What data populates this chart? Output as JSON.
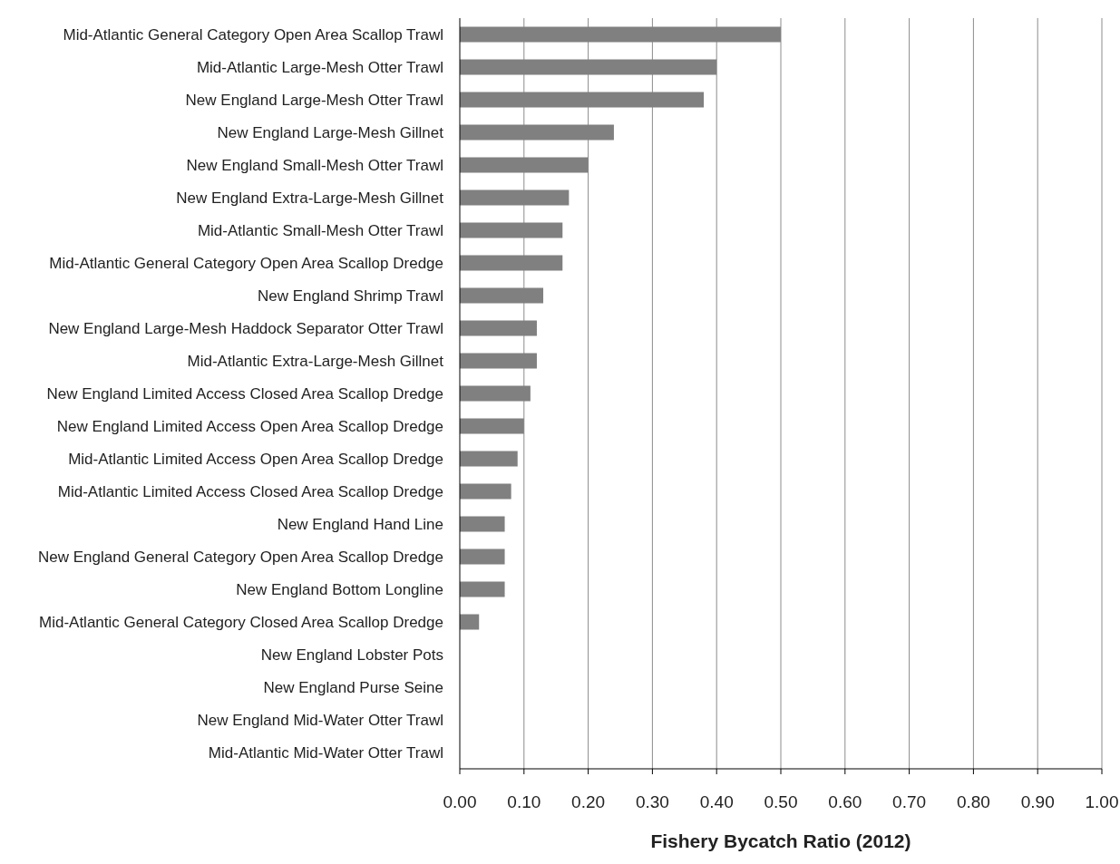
{
  "chart_data": {
    "type": "bar",
    "orientation": "horizontal",
    "xlabel": "Fishery Bycatch Ratio (2012)",
    "categories": [
      "Mid-Atlantic General Category Open Area Scallop Trawl",
      "Mid-Atlantic Large-Mesh Otter Trawl",
      "New England Large-Mesh Otter Trawl",
      "New England Large-Mesh Gillnet",
      "New England Small-Mesh Otter Trawl",
      "New England Extra-Large-Mesh Gillnet",
      "Mid-Atlantic Small-Mesh Otter Trawl",
      "Mid-Atlantic General Category Open Area Scallop Dredge",
      "New England Shrimp Trawl",
      "New England Large-Mesh Haddock Separator Otter Trawl",
      "Mid-Atlantic Extra-Large-Mesh Gillnet",
      "New England Limited Access Closed Area Scallop Dredge",
      "New England Limited Access Open Area Scallop Dredge",
      "Mid-Atlantic Limited Access Open Area Scallop Dredge",
      "Mid-Atlantic Limited Access Closed Area Scallop Dredge",
      "New England Hand Line",
      "New England General Category Open Area Scallop Dredge",
      "New England Bottom Longline",
      "Mid-Atlantic General Category Closed Area Scallop Dredge",
      "New England Lobster Pots",
      "New England Purse Seine",
      "New England Mid-Water Otter Trawl",
      "Mid-Atlantic Mid-Water Otter Trawl"
    ],
    "values": [
      0.5,
      0.4,
      0.38,
      0.24,
      0.2,
      0.17,
      0.16,
      0.16,
      0.13,
      0.12,
      0.12,
      0.11,
      0.1,
      0.09,
      0.08,
      0.07,
      0.07,
      0.07,
      0.03,
      0,
      0,
      0,
      0
    ],
    "color": "#808080",
    "xlim": [
      0,
      1
    ],
    "xticks": [
      {
        "value": 0,
        "label": "0.00"
      },
      {
        "value": 0.1,
        "label": "0.10"
      },
      {
        "value": 0.2,
        "label": "0.20"
      },
      {
        "value": 0.3,
        "label": "0.30"
      },
      {
        "value": 0.4,
        "label": "0.40"
      },
      {
        "value": 0.5,
        "label": "0.50"
      },
      {
        "value": 0.6,
        "label": "0.60"
      },
      {
        "value": 0.7,
        "label": "0.70"
      },
      {
        "value": 0.8,
        "label": "0.80"
      },
      {
        "value": 0.9,
        "label": "0.90"
      },
      {
        "value": 1,
        "label": "1.00"
      }
    ],
    "grid": "x"
  }
}
